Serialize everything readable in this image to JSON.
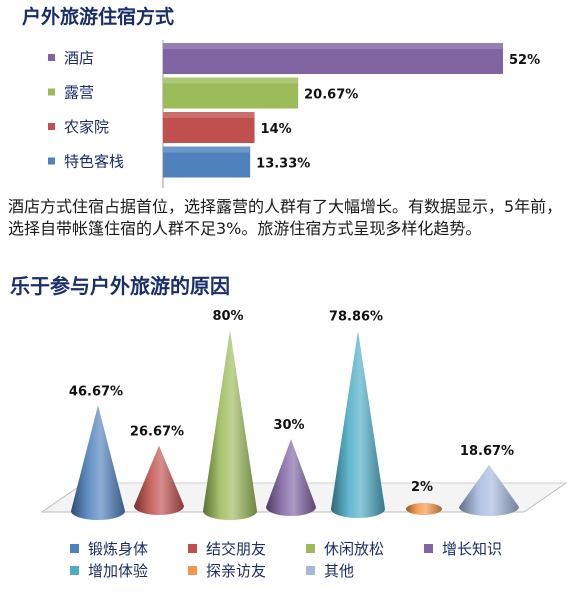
{
  "title1": "户外旅游住宿方式",
  "title2": "乐于参与户外旅游的原因",
  "description": "酒店方式住宿占据首位，选择露营的人群有了大幅增长。有数据显示，5年前，选择自带帐篷住宿的人群不足3%。旅游住宿方式呈现多样化趋势。",
  "chart_data": [
    {
      "type": "bar",
      "orientation": "horizontal",
      "title": "户外旅游住宿方式",
      "categories": [
        "酒店",
        "露营",
        "农家院",
        "特色客栈"
      ],
      "values": [
        52,
        20.67,
        14,
        13.33
      ],
      "labels": [
        "52%",
        "20.67%",
        "14%",
        "13.33%"
      ],
      "colors": [
        "#8064a2",
        "#9bbb59",
        "#c0504d",
        "#4f81bd"
      ]
    },
    {
      "type": "bar",
      "style": "3d-cone",
      "title": "乐于参与户外旅游的原因",
      "categories": [
        "锻炼身体",
        "结交朋友",
        "休闲放松",
        "增长知识",
        "增加体验",
        "探亲访友",
        "其他"
      ],
      "values": [
        46.67,
        26.67,
        80,
        30,
        78.86,
        2,
        18.67
      ],
      "labels": [
        "46.67%",
        "26.67%",
        "80%",
        "30%",
        "78.86%",
        "2%",
        "18.67%"
      ],
      "colors": [
        "#4f81bd",
        "#c0504d",
        "#9bbb59",
        "#8064a2",
        "#4bacc6",
        "#f79646",
        "#a5b8dd"
      ],
      "legend_position": "bottom"
    }
  ]
}
